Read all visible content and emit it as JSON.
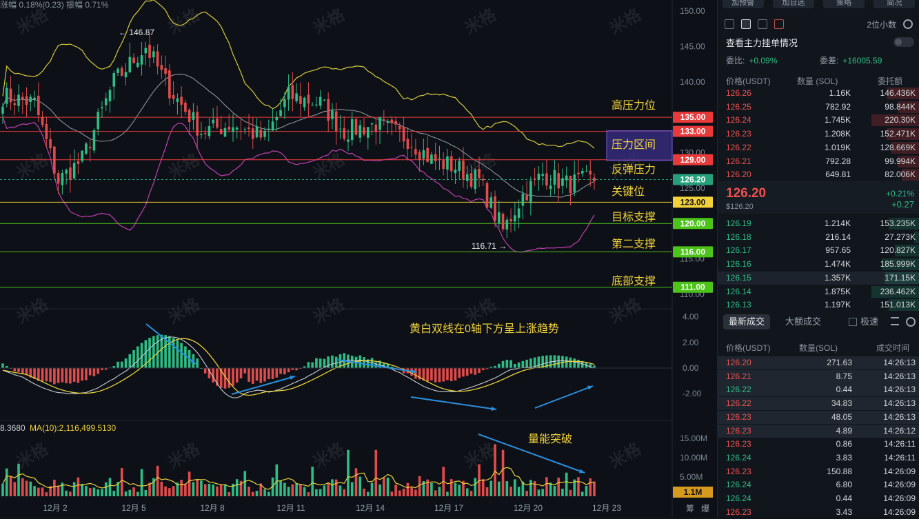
{
  "chart": {
    "top_info": "涨幅 0.18%(0.23)  振幅 0.71%",
    "price_axis": [
      "150.00",
      "145.00",
      "140.00",
      "135.00",
      "130.00",
      "125.00",
      "120.00",
      "115.00",
      "110.00"
    ],
    "macd_axis": [
      "4.00",
      "2.00",
      "0.00",
      "-2.00"
    ],
    "volume_axis": [
      "15.00M",
      "10.00M",
      "5.00M"
    ],
    "x_labels": [
      "12月 2",
      "12月 5",
      "12月 8",
      "12月 11",
      "12月 14",
      "12月 17",
      "12月 20",
      "12月 23"
    ],
    "corner_labels": [
      "筹",
      "爆"
    ],
    "price_high_label": "← 146.87",
    "price_low_label": "116.71 →",
    "ma_label_prefix": "8.3680",
    "ma_label": "MA(10):2,116,499.5130",
    "level_tags": [
      {
        "text": "135.00",
        "color": "#e83a3a",
        "text_color": "#ffffff"
      },
      {
        "text": "133.00",
        "color": "#e83a3a",
        "text_color": "#ffffff"
      },
      {
        "text": "129.00",
        "color": "#e83a3a",
        "text_color": "#ffffff"
      },
      {
        "text": "126.20",
        "color": "#24a17a",
        "text_color": "#ffffff"
      },
      {
        "text": "123.00",
        "color": "#f2d13a",
        "text_color": "#111111"
      },
      {
        "text": "120.00",
        "color": "#4cc41a",
        "text_color": "#ffffff"
      },
      {
        "text": "116.00",
        "color": "#4cc41a",
        "text_color": "#ffffff"
      },
      {
        "text": "111.00",
        "color": "#4cc41a",
        "text_color": "#ffffff"
      }
    ],
    "volume_tag": "1.1M",
    "annotations": [
      "高压力位",
      "压力区间",
      "反弹压力",
      "关键位",
      "目标支撑",
      "第二支撑",
      "底部支撑",
      "黄白双线在0轴下方呈上涨趋势",
      "量能突破"
    ],
    "watermark": "米格"
  },
  "panel": {
    "top_buttons": [
      "加预警",
      "加自选",
      "策略",
      "简况"
    ],
    "decimals": "2位小数",
    "main_force": "查看主力挂单情况",
    "ratio_label": "委比:",
    "ratio_value": "+0.09%",
    "diff_label": "委差:",
    "diff_value": "+16005.59",
    "book_headers": [
      "价格(USDT)",
      "数量 (SOL)",
      "委托额"
    ],
    "asks": [
      [
        "126.26",
        "1.16K",
        "146.436K"
      ],
      [
        "126.25",
        "782.92",
        "98.844K"
      ],
      [
        "126.24",
        "1.745K",
        "220.30K"
      ],
      [
        "126.23",
        "1.208K",
        "152.471K"
      ],
      [
        "126.22",
        "1.019K",
        "128.669K"
      ],
      [
        "126.21",
        "792.28",
        "99.994K"
      ],
      [
        "126.20",
        "649.81",
        "82.006K"
      ]
    ],
    "last_price": "126.20",
    "last_price_usd": "$126.20",
    "change_pct": "+0.21%",
    "change_abs": "+0.27",
    "bids": [
      [
        "126.19",
        "1.214K",
        "153.235K"
      ],
      [
        "126.18",
        "216.14",
        "27.273K"
      ],
      [
        "126.17",
        "957.65",
        "120.827K"
      ],
      [
        "126.16",
        "1.474K",
        "185.999K"
      ],
      [
        "126.15",
        "1.357K",
        "171.15K"
      ],
      [
        "126.14",
        "1.875K",
        "236.462K"
      ],
      [
        "126.13",
        "1.197K",
        "151.013K"
      ]
    ],
    "tab_latest": "最新成交",
    "tab_big": "大额成交",
    "fast_label": "极速",
    "trade_headers": [
      "价格(USDT)",
      "数量(SOL)",
      "成交时间"
    ],
    "trades": [
      [
        "126.20",
        "271.63",
        "14:26:13",
        "r"
      ],
      [
        "126.21",
        "8.75",
        "14:26:13",
        "r"
      ],
      [
        "126.22",
        "0.44",
        "14:26:13",
        "g"
      ],
      [
        "126.22",
        "34.83",
        "14:26:13",
        "r"
      ],
      [
        "126.23",
        "48.05",
        "14:26:13",
        "r"
      ],
      [
        "126.23",
        "4.89",
        "14:26:12",
        "r"
      ],
      [
        "126.23",
        "0.86",
        "14:26:11",
        "r"
      ],
      [
        "126.24",
        "3.83",
        "14:26:11",
        "g"
      ],
      [
        "126.23",
        "150.88",
        "14:26:09",
        "r"
      ],
      [
        "126.24",
        "6.80",
        "14:26:09",
        "g"
      ],
      [
        "126.24",
        "0.44",
        "14:26:09",
        "g"
      ],
      [
        "126.23",
        "3.43",
        "14:26:09",
        "r"
      ]
    ]
  }
}
